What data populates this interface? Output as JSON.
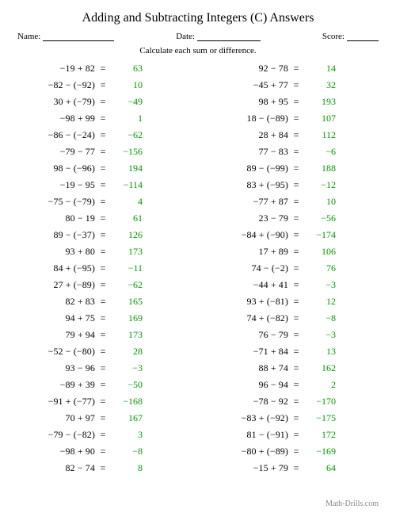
{
  "title": "Adding and Subtracting Integers (C) Answers",
  "labels": {
    "name": "Name:",
    "date": "Date:",
    "score": "Score:"
  },
  "instruction": "Calculate each sum or difference.",
  "footer": "Math-Drills.com",
  "answer_color": "#009900",
  "left": [
    {
      "a": "−19 + 82",
      "r": "63"
    },
    {
      "a": "−82 − (−92)",
      "r": "10"
    },
    {
      "a": "30 + (−79)",
      "r": "−49"
    },
    {
      "a": "−98 + 99",
      "r": "1"
    },
    {
      "a": "−86 − (−24)",
      "r": "−62"
    },
    {
      "a": "−79 − 77",
      "r": "−156"
    },
    {
      "a": "98 − (−96)",
      "r": "194"
    },
    {
      "a": "−19 − 95",
      "r": "−114"
    },
    {
      "a": "−75 − (−79)",
      "r": "4"
    },
    {
      "a": "80 − 19",
      "r": "61"
    },
    {
      "a": "89 − (−37)",
      "r": "126"
    },
    {
      "a": "93 + 80",
      "r": "173"
    },
    {
      "a": "84 + (−95)",
      "r": "−11"
    },
    {
      "a": "27 + (−89)",
      "r": "−62"
    },
    {
      "a": "82 + 83",
      "r": "165"
    },
    {
      "a": "94 + 75",
      "r": "169"
    },
    {
      "a": "79 + 94",
      "r": "173"
    },
    {
      "a": "−52 − (−80)",
      "r": "28"
    },
    {
      "a": "93 − 96",
      "r": "−3"
    },
    {
      "a": "−89 + 39",
      "r": "−50"
    },
    {
      "a": "−91 + (−77)",
      "r": "−168"
    },
    {
      "a": "70 + 97",
      "r": "167"
    },
    {
      "a": "−79 − (−82)",
      "r": "3"
    },
    {
      "a": "−98 + 90",
      "r": "−8"
    },
    {
      "a": "82 − 74",
      "r": "8"
    }
  ],
  "right": [
    {
      "a": "92 − 78",
      "r": "14"
    },
    {
      "a": "−45 + 77",
      "r": "32"
    },
    {
      "a": "98 + 95",
      "r": "193"
    },
    {
      "a": "18 − (−89)",
      "r": "107"
    },
    {
      "a": "28 + 84",
      "r": "112"
    },
    {
      "a": "77 − 83",
      "r": "−6"
    },
    {
      "a": "89 − (−99)",
      "r": "188"
    },
    {
      "a": "83 + (−95)",
      "r": "−12"
    },
    {
      "a": "−77 + 87",
      "r": "10"
    },
    {
      "a": "23 − 79",
      "r": "−56"
    },
    {
      "a": "−84 + (−90)",
      "r": "−174"
    },
    {
      "a": "17 + 89",
      "r": "106"
    },
    {
      "a": "74 − (−2)",
      "r": "76"
    },
    {
      "a": "−44 + 41",
      "r": "−3"
    },
    {
      "a": "93 + (−81)",
      "r": "12"
    },
    {
      "a": "74 + (−82)",
      "r": "−8"
    },
    {
      "a": "76 − 79",
      "r": "−3"
    },
    {
      "a": "−71 + 84",
      "r": "13"
    },
    {
      "a": "88 + 74",
      "r": "162"
    },
    {
      "a": "96 − 94",
      "r": "2"
    },
    {
      "a": "−78 − 92",
      "r": "−170"
    },
    {
      "a": "−83 + (−92)",
      "r": "−175"
    },
    {
      "a": "81 − (−91)",
      "r": "172"
    },
    {
      "a": "−80 + (−89)",
      "r": "−169"
    },
    {
      "a": "−15 + 79",
      "r": "64"
    }
  ]
}
